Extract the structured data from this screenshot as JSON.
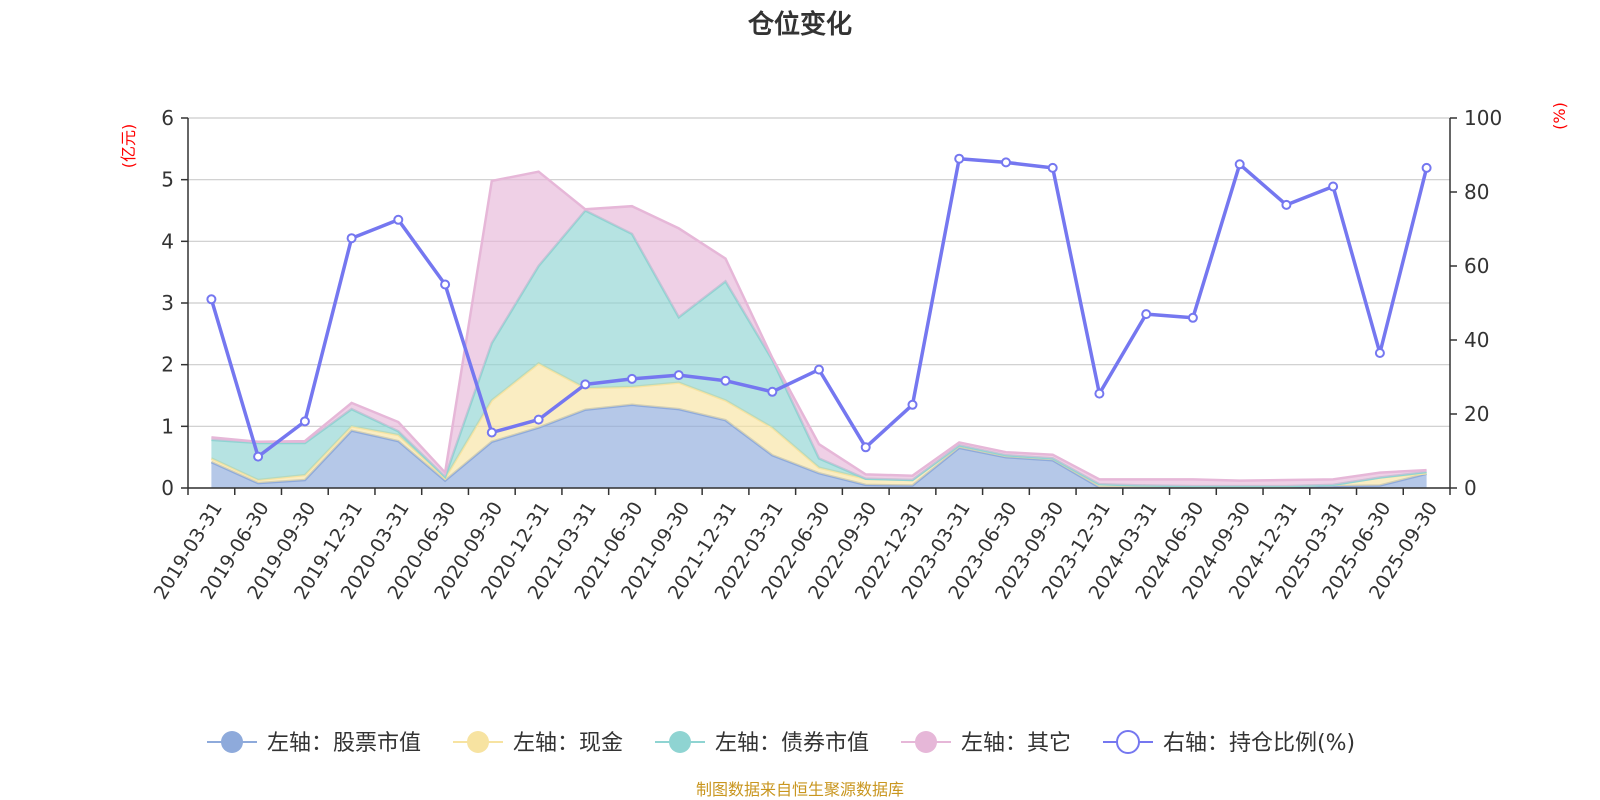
{
  "chart_data": {
    "type": "area",
    "title": "仓位变化",
    "left_axis_unit": "(亿元)",
    "right_axis_unit": "(%)",
    "left_ylim": [
      0,
      6
    ],
    "left_ticks": [
      "0",
      "1",
      "2",
      "3",
      "4",
      "5",
      "6"
    ],
    "right_ylim": [
      0,
      100
    ],
    "right_ticks": [
      "0",
      "20",
      "40",
      "60",
      "80",
      "100"
    ],
    "x": [
      "2019-03-31",
      "2019-06-30",
      "2019-09-30",
      "2019-12-31",
      "2020-03-31",
      "2020-06-30",
      "2020-09-30",
      "2020-12-31",
      "2021-03-31",
      "2021-06-30",
      "2021-09-30",
      "2021-12-31",
      "2022-03-31",
      "2022-06-30",
      "2022-09-30",
      "2022-12-31",
      "2023-03-31",
      "2023-06-30",
      "2023-09-30",
      "2023-12-31",
      "2024-03-31",
      "2024-06-30",
      "2024-09-30",
      "2024-12-31",
      "2025-03-31",
      "2025-06-30",
      "2025-09-30"
    ],
    "stacked_series": [
      {
        "name": "左轴：股票市值",
        "axis": "left",
        "color": "#8eaadb",
        "values": [
          0.42,
          0.08,
          0.13,
          0.93,
          0.76,
          0.12,
          0.75,
          0.98,
          1.27,
          1.35,
          1.28,
          1.1,
          0.53,
          0.24,
          0.05,
          0.04,
          0.65,
          0.5,
          0.45,
          0.01,
          0.01,
          0.01,
          0.02,
          0.02,
          0.03,
          0.04,
          0.23
        ]
      },
      {
        "name": "左轴：现金",
        "axis": "left",
        "color": "#f7e3a1",
        "values": [
          0.06,
          0.05,
          0.08,
          0.07,
          0.1,
          0.04,
          0.67,
          1.04,
          0.35,
          0.29,
          0.43,
          0.32,
          0.45,
          0.09,
          0.1,
          0.09,
          0.04,
          0.03,
          0.03,
          0.05,
          0.03,
          0.02,
          0.01,
          0.01,
          0.02,
          0.13,
          0.01
        ]
      },
      {
        "name": "左轴：债券市值",
        "axis": "left",
        "color": "#8fd4d2",
        "values": [
          0.3,
          0.6,
          0.52,
          0.28,
          0.06,
          0.02,
          0.93,
          1.58,
          2.88,
          2.48,
          1.06,
          1.93,
          1.1,
          0.15,
          0,
          0,
          0,
          0,
          0,
          0,
          0,
          0,
          0,
          0,
          0,
          0,
          0.02
        ]
      },
      {
        "name": "左轴：其它",
        "axis": "left",
        "color": "#e6b7d8",
        "values": [
          0.04,
          0.02,
          0.03,
          0.1,
          0.15,
          0.07,
          2.63,
          1.53,
          0.02,
          0.45,
          1.44,
          0.37,
          0.03,
          0.23,
          0.07,
          0.07,
          0.05,
          0.05,
          0.06,
          0.08,
          0.1,
          0.11,
          0.09,
          0.1,
          0.09,
          0.08,
          0.03
        ]
      }
    ],
    "line_series": {
      "name": "右轴：持仓比例(%)",
      "axis": "right",
      "color": "#7577f0",
      "values": [
        51,
        8.5,
        18,
        67.5,
        72.5,
        55,
        15,
        18.5,
        28,
        29.5,
        30.5,
        29,
        26,
        32,
        11,
        22.5,
        89,
        88,
        86.5,
        25.5,
        47,
        46,
        87.5,
        76.5,
        81.5,
        36.5,
        86.5
      ]
    },
    "legend_position": "bottom",
    "grid": true
  },
  "legend": [
    {
      "label": "左轴：股票市值",
      "color": "#8eaadb",
      "kind": "area"
    },
    {
      "label": "左轴：现金",
      "color": "#f7e3a1",
      "kind": "area"
    },
    {
      "label": "左轴：债券市值",
      "color": "#8fd4d2",
      "kind": "area"
    },
    {
      "label": "左轴：其它",
      "color": "#e6b7d8",
      "kind": "area"
    },
    {
      "label": "右轴：持仓比例(%)",
      "color": "#7577f0",
      "kind": "line"
    }
  ],
  "source": "制图数据来自恒生聚源数据库",
  "colors": {
    "axis_unit": "#ff0000",
    "source": "#c9961f",
    "text": "#333333",
    "grid": "#cccccc"
  }
}
